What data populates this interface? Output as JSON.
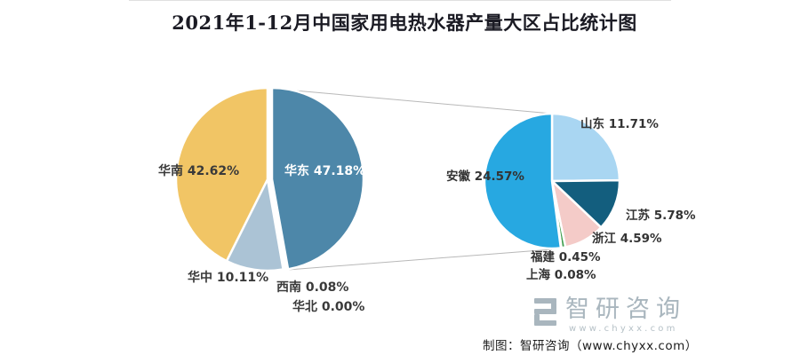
{
  "title": "2021年1-12月中国家用电热水器产量大区占比统计图",
  "footer": {
    "credit": "制图：智研咨询（www.chyxx.com）"
  },
  "logo": {
    "text": "智研咨询",
    "url": "www.chyxx.com",
    "color": "#a9b6be"
  },
  "chart_data": {
    "type": "pie",
    "variant": "pie-of-pie",
    "title": "2021年1-12月中国家用电热水器产量大区占比统计图",
    "unit": "%",
    "start_angle_deg": 0,
    "direction": "clockwise",
    "connector_color": "#b8b8b8",
    "background": "#ffffff",
    "primary": {
      "slices": [
        {
          "name": "华东",
          "value": 47.18,
          "label": "华东 47.18%",
          "color": "#4d87a9"
        },
        {
          "name": "西南",
          "value": 0.08,
          "label": "西南 0.08%",
          "color": "#c99aa0"
        },
        {
          "name": "华北",
          "value": 0.0,
          "label": "华北 0.00%",
          "color": "#cccccc"
        },
        {
          "name": "华中",
          "value": 10.11,
          "label": "华中 10.11%",
          "color": "#abc3d5"
        },
        {
          "name": "华南",
          "value": 42.62,
          "label": "华南 42.62%",
          "color": "#f1c565"
        }
      ]
    },
    "secondary": {
      "slices": [
        {
          "name": "山东",
          "value": 11.71,
          "label": "山东 11.71%",
          "color": "#a9d6f2"
        },
        {
          "name": "江苏",
          "value": 5.78,
          "label": "江苏 5.78%",
          "color": "#135e7e"
        },
        {
          "name": "浙江",
          "value": 4.59,
          "label": "浙江 4.59%",
          "color": "#f4cbc8"
        },
        {
          "name": "福建",
          "value": 0.45,
          "label": "福建 0.45%",
          "color": "#3f9e4d"
        },
        {
          "name": "上海",
          "value": 0.08,
          "label": "上海 0.08%",
          "color": "#bfe0f2"
        },
        {
          "name": "安徽",
          "value": 24.57,
          "label": "安徽 24.57%",
          "color": "#27a8e1"
        }
      ]
    }
  }
}
